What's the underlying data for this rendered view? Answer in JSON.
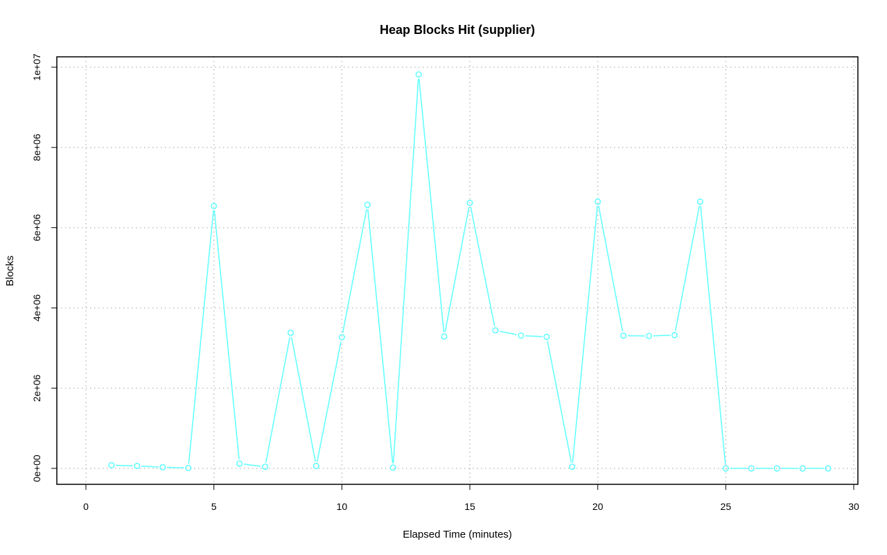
{
  "chart_data": {
    "type": "line",
    "title": "Heap Blocks Hit (supplier)",
    "xlabel": "Elapsed Time (minutes)",
    "ylabel": "Blocks",
    "xlim": [
      0,
      30
    ],
    "ylim": [
      0,
      10000000
    ],
    "x_ticks": [
      0,
      5,
      10,
      15,
      20,
      25,
      30
    ],
    "x_tick_labels": [
      "0",
      "5",
      "10",
      "15",
      "20",
      "25",
      "30"
    ],
    "y_ticks": [
      0,
      2000000,
      4000000,
      6000000,
      8000000,
      10000000
    ],
    "y_tick_labels": [
      "0e+00",
      "2e+06",
      "4e+06",
      "6e+06",
      "8e+06",
      "1e+07"
    ],
    "grid": true,
    "series": [
      {
        "color": "#66ffff",
        "marker": "open-circle",
        "x": [
          1,
          2,
          3,
          4,
          5,
          6,
          7,
          8,
          9,
          10,
          11,
          12,
          13,
          14,
          15,
          16,
          17,
          18,
          19,
          20,
          21,
          22,
          23,
          24,
          25,
          26,
          27,
          28,
          29
        ],
        "y": [
          80000,
          60000,
          30000,
          10000,
          6540000,
          120000,
          40000,
          3380000,
          60000,
          3270000,
          6570000,
          20000,
          9820000,
          3290000,
          6620000,
          3440000,
          3310000,
          3280000,
          40000,
          6650000,
          3310000,
          3300000,
          3320000,
          6650000,
          0,
          0,
          0,
          0,
          0
        ]
      }
    ]
  }
}
